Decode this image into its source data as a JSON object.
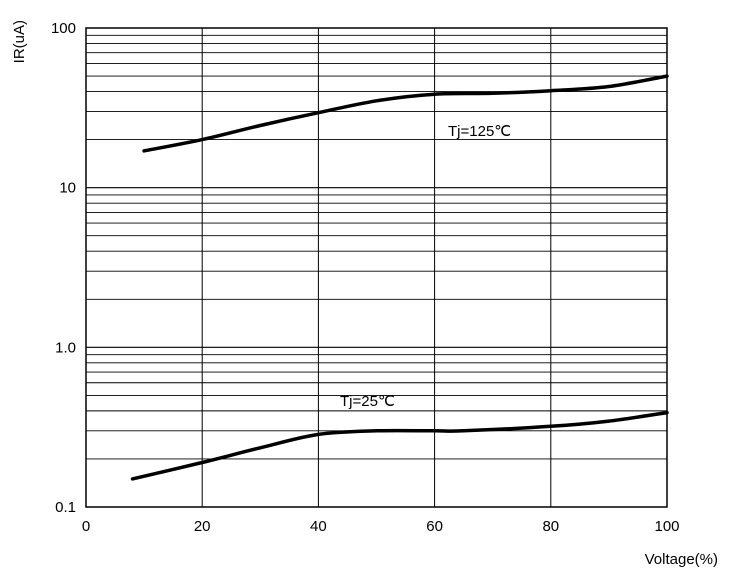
{
  "chart_data": {
    "type": "line",
    "xlabel": "Voltage(%)",
    "ylabel": "IR(uA)",
    "xlim": [
      0,
      100
    ],
    "ylim": [
      0.1,
      100
    ],
    "yscale": "log",
    "grid": true,
    "x_ticks": [
      "0",
      "20",
      "40",
      "60",
      "80",
      "100"
    ],
    "y_ticks": [
      "0.1",
      "1.0",
      "10",
      "100"
    ],
    "series": [
      {
        "name": "Tj=125℃",
        "x": [
          10,
          20,
          30,
          40,
          50,
          60,
          70,
          80,
          90,
          100
        ],
        "y": [
          17,
          20,
          24.5,
          29.5,
          35,
          38.5,
          39,
          40.5,
          43,
          50
        ]
      },
      {
        "name": "Tj=25℃",
        "x": [
          8,
          20,
          30,
          40,
          50,
          60,
          65,
          80,
          90,
          100
        ],
        "y": [
          0.15,
          0.19,
          0.235,
          0.285,
          0.3,
          0.3,
          0.3,
          0.32,
          0.345,
          0.39
        ]
      }
    ]
  }
}
